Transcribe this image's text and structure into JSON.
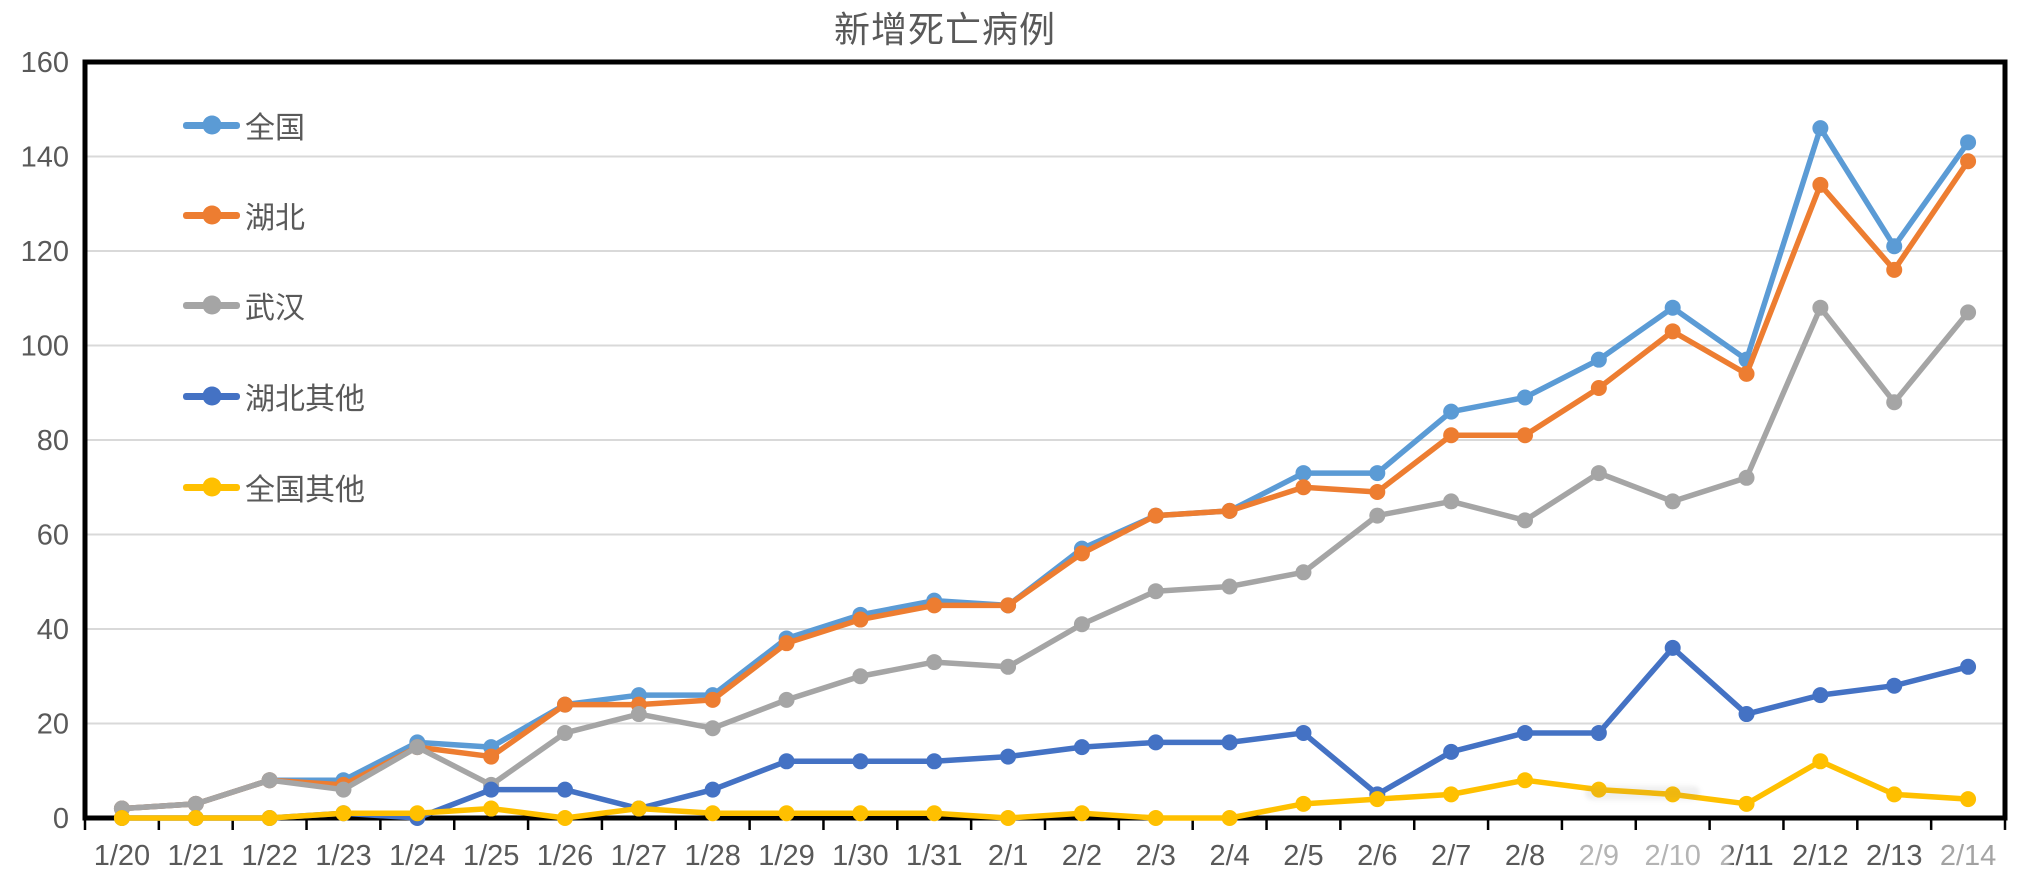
{
  "chart_data": {
    "type": "line",
    "title": "新增死亡病例",
    "categories": [
      "1/20",
      "1/21",
      "1/22",
      "1/23",
      "1/24",
      "1/25",
      "1/26",
      "1/27",
      "1/28",
      "1/29",
      "1/30",
      "1/31",
      "2/1",
      "2/2",
      "2/3",
      "2/4",
      "2/5",
      "2/6",
      "2/7",
      "2/8",
      "2/9",
      "2/10",
      "2/11",
      "2/12",
      "2/13",
      "2/14"
    ],
    "series": [
      {
        "name": "全国",
        "id": "national",
        "color": "#5B9BD5",
        "values": [
          2,
          3,
          8,
          8,
          16,
          15,
          24,
          26,
          26,
          38,
          43,
          46,
          45,
          57,
          64,
          65,
          73,
          73,
          86,
          89,
          97,
          108,
          97,
          146,
          121,
          143
        ]
      },
      {
        "name": "湖北",
        "id": "hubei",
        "color": "#ED7D31",
        "values": [
          2,
          3,
          8,
          7,
          15,
          13,
          24,
          24,
          25,
          37,
          42,
          45,
          45,
          56,
          64,
          65,
          70,
          69,
          81,
          81,
          91,
          103,
          94,
          134,
          116,
          139
        ]
      },
      {
        "name": "武汉",
        "id": "wuhan",
        "color": "#A5A5A5",
        "values": [
          2,
          3,
          8,
          6,
          15,
          7,
          18,
          22,
          19,
          25,
          30,
          33,
          32,
          41,
          48,
          49,
          52,
          64,
          67,
          63,
          73,
          67,
          72,
          108,
          88,
          107
        ]
      },
      {
        "name": "湖北其他",
        "id": "hubei-other",
        "color": "#4472C4",
        "values": [
          0,
          0,
          0,
          1,
          0,
          6,
          6,
          2,
          6,
          12,
          12,
          12,
          13,
          15,
          16,
          16,
          18,
          5,
          14,
          18,
          18,
          36,
          22,
          26,
          28,
          32
        ]
      },
      {
        "name": "全国其他",
        "id": "national-other",
        "color": "#FFC000",
        "values": [
          0,
          0,
          0,
          1,
          1,
          2,
          0,
          2,
          1,
          1,
          1,
          1,
          0,
          1,
          0,
          0,
          3,
          4,
          5,
          8,
          6,
          5,
          3,
          12,
          5,
          4
        ]
      }
    ],
    "xlabel": "",
    "ylabel": "",
    "ylim": [
      0,
      160
    ],
    "ytick_step": 20,
    "yticks": [
      "0",
      "20",
      "40",
      "60",
      "80",
      "100",
      "120",
      "140",
      "160"
    ],
    "grid": "horizontal",
    "legend_position": "inside-top-left",
    "axis_color": "#000000",
    "gridline_color": "#D9D9D9",
    "label_color": "#595959"
  }
}
